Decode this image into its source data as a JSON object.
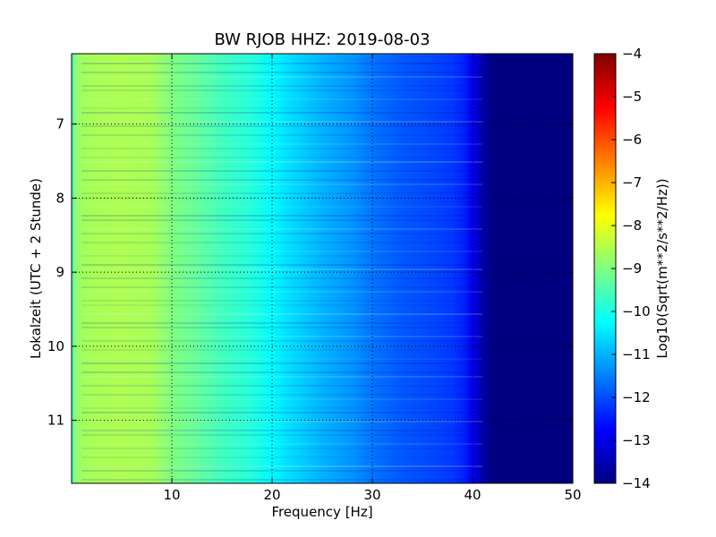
{
  "chart_data": {
    "type": "heatmap",
    "title": "BW RJOB HHZ: 2019-08-03",
    "xlabel": "Frequency [Hz]",
    "ylabel": "Lokalzeit (UTC + 2 Stunde)",
    "xlim": [
      0,
      50
    ],
    "ylim": [
      11.85,
      6.05
    ],
    "x_ticks": [
      10,
      20,
      30,
      40,
      50
    ],
    "y_ticks": [
      7,
      8,
      9,
      10,
      11
    ],
    "grid": true,
    "colormap": "jet",
    "colorbar": {
      "label": "Log10(Sqrt(m**2/s**2/Hz))",
      "range": [
        -14,
        -4
      ],
      "ticks": [
        -4,
        -5,
        -6,
        -7,
        -8,
        -9,
        -10,
        -11,
        -12,
        -13,
        -14
      ]
    },
    "profile": {
      "frequency_hz": [
        0,
        0.5,
        1,
        2,
        5,
        8,
        10,
        12,
        15,
        18,
        20,
        22,
        25,
        28,
        30,
        33,
        35,
        38,
        39,
        40,
        41,
        42,
        45,
        50
      ],
      "log10_psd": [
        -9.6,
        -8.8,
        -8.7,
        -8.6,
        -8.55,
        -8.6,
        -9.0,
        -9.2,
        -9.6,
        -9.9,
        -10.3,
        -10.6,
        -11.0,
        -11.3,
        -11.6,
        -11.9,
        -12.0,
        -12.2,
        -12.4,
        -12.9,
        -13.6,
        -14.0,
        -14.0,
        -14.0
      ]
    },
    "series": []
  }
}
